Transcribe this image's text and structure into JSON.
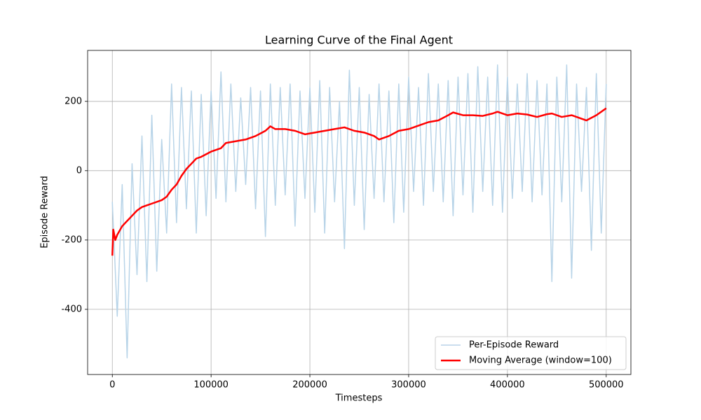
{
  "chart_data": {
    "type": "line",
    "title": "Learning Curve of the Final Agent",
    "x_label": "Timesteps",
    "y_label": "Episode Reward",
    "xlim": [
      -25000,
      525000
    ],
    "ylim": [
      -588,
      347
    ],
    "xticks": [
      0,
      100000,
      200000,
      300000,
      400000,
      500000
    ],
    "yticks": [
      -400,
      -200,
      0,
      200
    ],
    "grid": true,
    "legend": "lower right",
    "series": [
      {
        "name": "Per-Episode Reward",
        "color": "#b8d4e8",
        "linewidth": 1.5,
        "x": [
          0,
          5000,
          10000,
          15000,
          20000,
          25000,
          30000,
          35000,
          40000,
          45000,
          50000,
          55000,
          60000,
          65000,
          70000,
          75000,
          80000,
          85000,
          90000,
          95000,
          100000,
          105000,
          110000,
          115000,
          120000,
          125000,
          130000,
          135000,
          140000,
          145000,
          150000,
          155000,
          160000,
          165000,
          170000,
          175000,
          180000,
          185000,
          190000,
          195000,
          200000,
          205000,
          210000,
          215000,
          220000,
          225000,
          230000,
          235000,
          240000,
          245000,
          250000,
          255000,
          260000,
          265000,
          270000,
          275000,
          280000,
          285000,
          290000,
          295000,
          300000,
          305000,
          310000,
          315000,
          320000,
          325000,
          330000,
          335000,
          340000,
          345000,
          350000,
          355000,
          360000,
          365000,
          370000,
          375000,
          380000,
          385000,
          390000,
          395000,
          400000,
          405000,
          410000,
          415000,
          420000,
          425000,
          430000,
          435000,
          440000,
          445000,
          450000,
          455000,
          460000,
          465000,
          470000,
          475000,
          480000,
          485000,
          490000,
          495000,
          500000
        ],
        "values": [
          -90,
          -420,
          -40,
          -540,
          20,
          -300,
          100,
          -320,
          160,
          -290,
          90,
          -180,
          250,
          -150,
          240,
          -110,
          230,
          -180,
          220,
          -130,
          230,
          -80,
          285,
          -90,
          250,
          -60,
          210,
          -40,
          240,
          -110,
          230,
          -190,
          250,
          -100,
          240,
          -70,
          250,
          -160,
          230,
          -80,
          240,
          -120,
          260,
          -180,
          240,
          -90,
          200,
          -225,
          290,
          -100,
          240,
          -170,
          220,
          -80,
          250,
          -90,
          230,
          -150,
          250,
          -120,
          270,
          -60,
          240,
          -100,
          280,
          -60,
          250,
          -90,
          260,
          -130,
          270,
          -70,
          280,
          -120,
          300,
          -60,
          270,
          -100,
          305,
          -120,
          270,
          -80,
          250,
          -60,
          280,
          -90,
          260,
          -70,
          250,
          -320,
          270,
          -90,
          305,
          -310,
          250,
          -60,
          240,
          -230,
          280,
          -180,
          250
        ]
      },
      {
        "name": "Moving Average (window=100)",
        "color": "#ff0000",
        "linewidth": 2.5,
        "x": [
          0,
          1000,
          3000,
          5000,
          10000,
          15000,
          20000,
          25000,
          30000,
          35000,
          40000,
          50000,
          55000,
          60000,
          65000,
          70000,
          75000,
          80000,
          85000,
          90000,
          100000,
          110000,
          115000,
          125000,
          135000,
          145000,
          155000,
          160000,
          165000,
          175000,
          185000,
          195000,
          205000,
          215000,
          225000,
          235000,
          245000,
          255000,
          265000,
          270000,
          280000,
          290000,
          300000,
          310000,
          320000,
          330000,
          340000,
          345000,
          355000,
          365000,
          375000,
          385000,
          390000,
          400000,
          410000,
          420000,
          430000,
          440000,
          445000,
          455000,
          465000,
          475000,
          480000,
          490000,
          500000
        ],
        "values": [
          -245,
          -170,
          -200,
          -185,
          -160,
          -145,
          -130,
          -115,
          -105,
          -100,
          -95,
          -85,
          -75,
          -55,
          -40,
          -15,
          5,
          20,
          35,
          40,
          55,
          65,
          80,
          85,
          90,
          100,
          115,
          128,
          120,
          120,
          115,
          105,
          110,
          115,
          120,
          125,
          115,
          110,
          100,
          90,
          100,
          115,
          120,
          130,
          140,
          145,
          160,
          168,
          160,
          160,
          158,
          165,
          170,
          160,
          165,
          162,
          155,
          163,
          165,
          155,
          160,
          150,
          145,
          160,
          180
        ]
      }
    ]
  }
}
